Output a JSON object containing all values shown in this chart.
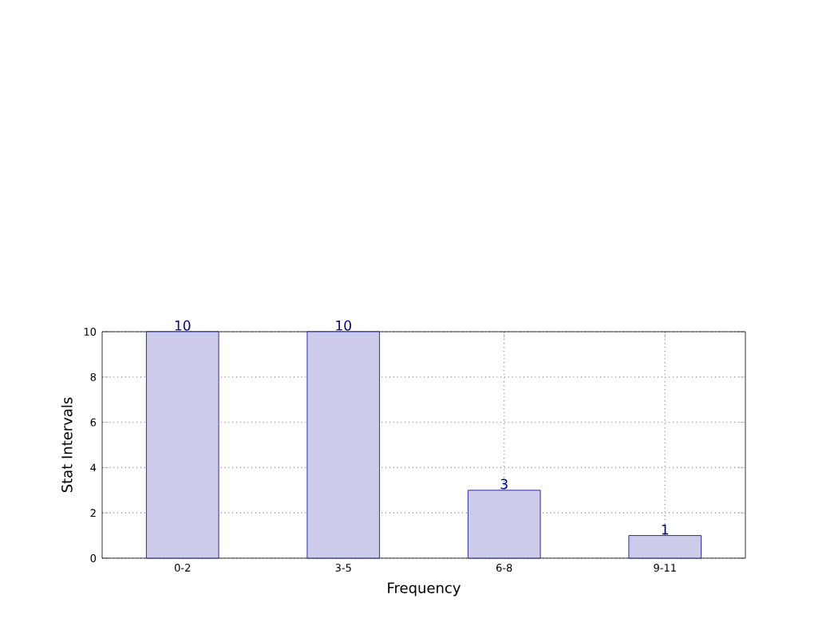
{
  "chart_data": {
    "type": "bar",
    "xlabel": "Frequency",
    "ylabel": "Stat Intervals",
    "categories": [
      "0-2",
      "3-5",
      "6-8",
      "9-11"
    ],
    "values": [
      10,
      10,
      3,
      1
    ],
    "color": "#ccccea",
    "ylim": [
      0,
      10
    ],
    "yticks": [
      0,
      2,
      4,
      6,
      8,
      10
    ],
    "grid": true,
    "data_labels": true
  }
}
